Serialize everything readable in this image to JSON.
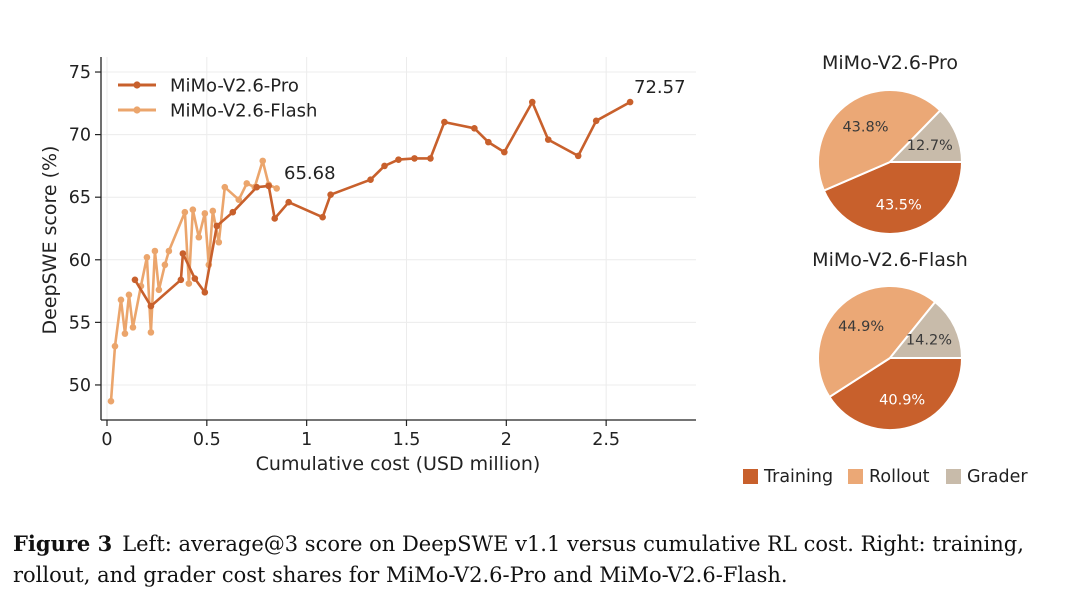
{
  "colors": {
    "pro": "#C8602C",
    "flash": "#EBA56C",
    "training": "#C8602C",
    "rollout": "#EBA876",
    "grader": "#C8BBAA",
    "pro_annot": "#C8602C",
    "flash_annot": "#B07A45"
  },
  "chart_data": [
    {
      "type": "line",
      "xlabel": "Cumulative cost (USD million)",
      "ylabel": "DeepSWE score (%)",
      "xlim": [
        -0.03,
        2.95
      ],
      "ylim": [
        47.2,
        76.2
      ],
      "xticks": [
        "0",
        "0.5",
        "1",
        "1.5",
        "2",
        "2.5"
      ],
      "xtick_values": [
        0,
        0.5,
        1,
        1.5,
        2,
        2.5
      ],
      "yticks": [
        "50",
        "55",
        "60",
        "65",
        "70",
        "75"
      ],
      "ytick_values": [
        50,
        55,
        60,
        65,
        70,
        75
      ],
      "grid": true,
      "legend_position": "top-left",
      "series": [
        {
          "name": "MiMo-V2.6-Pro",
          "color_key": "pro",
          "x": [
            0.14,
            0.22,
            0.37,
            0.38,
            0.44,
            0.49,
            0.55,
            0.63,
            0.75,
            0.81,
            0.84,
            0.91,
            1.08,
            1.12,
            1.32,
            1.39,
            1.46,
            1.54,
            1.62,
            1.69,
            1.84,
            1.91,
            1.99,
            2.13,
            2.21,
            2.36,
            2.45,
            2.62
          ],
          "y": [
            58.4,
            56.3,
            58.4,
            60.5,
            58.5,
            57.4,
            62.7,
            63.8,
            65.8,
            65.9,
            63.3,
            64.6,
            63.4,
            65.2,
            66.4,
            67.5,
            68.0,
            68.1,
            68.1,
            71.0,
            70.5,
            69.4,
            68.6,
            72.6,
            69.6,
            68.3,
            71.1,
            72.6
          ],
          "annotation": "72.57"
        },
        {
          "name": "MiMo-V2.6-Flash",
          "color_key": "flash",
          "x": [
            0.02,
            0.04,
            0.07,
            0.09,
            0.11,
            0.13,
            0.17,
            0.2,
            0.22,
            0.24,
            0.26,
            0.29,
            0.31,
            0.39,
            0.41,
            0.43,
            0.46,
            0.49,
            0.51,
            0.53,
            0.56,
            0.59,
            0.66,
            0.7,
            0.74,
            0.78,
            0.81,
            0.85
          ],
          "y": [
            48.7,
            53.1,
            56.8,
            54.1,
            57.2,
            54.6,
            57.9,
            60.2,
            54.2,
            60.7,
            57.6,
            59.6,
            60.7,
            63.8,
            58.1,
            64.0,
            61.8,
            63.7,
            59.6,
            63.9,
            61.4,
            65.8,
            64.8,
            66.1,
            65.8,
            67.9,
            66.0,
            65.7
          ],
          "annotation": "65.68"
        }
      ]
    },
    {
      "type": "pie",
      "title": "MiMo-V2.6-Pro",
      "labels": [
        "Training",
        "Rollout",
        "Grader"
      ],
      "values": [
        43.5,
        43.8,
        12.7
      ],
      "value_labels": [
        "43.5%",
        "43.8%",
        "12.7%"
      ]
    },
    {
      "type": "pie",
      "title": "MiMo-V2.6-Flash",
      "labels": [
        "Training",
        "Rollout",
        "Grader"
      ],
      "values": [
        40.9,
        44.9,
        14.2
      ],
      "value_labels": [
        "40.9%",
        "44.9%",
        "14.2%"
      ]
    }
  ],
  "legend": [
    "Training",
    "Rollout",
    "Grader"
  ],
  "caption": {
    "lead": "Figure 3",
    "text": "Left: average@3 score on DeepSWE v1.1 versus cumulative RL cost. Right: training, rollout, and grader cost shares for MiMo-V2.6-Pro and MiMo-V2.6-Flash."
  }
}
